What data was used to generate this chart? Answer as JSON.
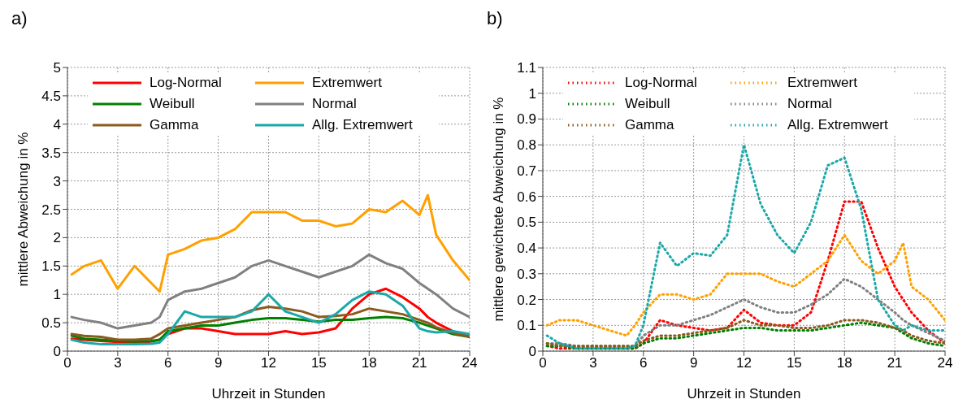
{
  "chart_data": [
    {
      "type": "line",
      "title": "a)",
      "xlabel": "Uhrzeit in Stunden",
      "ylabel": "mittlere Abweichung in %",
      "x": [
        0.25,
        1,
        2,
        3,
        4,
        5,
        5.5,
        6,
        7,
        8,
        9,
        10,
        11,
        12,
        13,
        14,
        15,
        16,
        17,
        18,
        19,
        20,
        21,
        21.5,
        22,
        23,
        24
      ],
      "xlim": [
        0,
        24
      ],
      "xticks": [
        0,
        3,
        6,
        9,
        12,
        15,
        18,
        21,
        24
      ],
      "ylim": [
        0,
        5
      ],
      "yticks": [
        0,
        0.5,
        1,
        1.5,
        2,
        2.5,
        3,
        3.5,
        4,
        4.5,
        5
      ],
      "grid": true,
      "legend": "top left",
      "line_style": "solid",
      "series": [
        {
          "name": "Log-Normal",
          "color": "#ff0000",
          "values": [
            0.22,
            0.2,
            0.18,
            0.16,
            0.15,
            0.17,
            0.2,
            0.3,
            0.4,
            0.4,
            0.35,
            0.3,
            0.3,
            0.3,
            0.35,
            0.3,
            0.33,
            0.4,
            0.75,
            1.0,
            1.1,
            0.95,
            0.75,
            0.6,
            0.5,
            0.35,
            0.25
          ]
        },
        {
          "name": "Extremwert",
          "color": "#ffa000",
          "values": [
            1.35,
            1.5,
            1.6,
            1.1,
            1.5,
            1.2,
            1.05,
            1.7,
            1.8,
            1.95,
            2.0,
            2.15,
            2.45,
            2.45,
            2.45,
            2.3,
            2.3,
            2.2,
            2.25,
            2.5,
            2.45,
            2.65,
            2.4,
            2.75,
            2.05,
            1.6,
            1.25
          ]
        },
        {
          "name": "Weibull",
          "color": "#008000",
          "values": [
            0.27,
            0.22,
            0.2,
            0.18,
            0.17,
            0.18,
            0.2,
            0.35,
            0.4,
            0.45,
            0.45,
            0.5,
            0.55,
            0.58,
            0.58,
            0.55,
            0.52,
            0.55,
            0.55,
            0.58,
            0.6,
            0.58,
            0.5,
            0.45,
            0.4,
            0.3,
            0.25
          ]
        },
        {
          "name": "Normal",
          "color": "#808080",
          "values": [
            0.6,
            0.55,
            0.5,
            0.4,
            0.45,
            0.5,
            0.6,
            0.9,
            1.05,
            1.1,
            1.2,
            1.3,
            1.5,
            1.6,
            1.5,
            1.4,
            1.3,
            1.4,
            1.5,
            1.7,
            1.55,
            1.45,
            1.2,
            1.1,
            1.0,
            0.75,
            0.6
          ]
        },
        {
          "name": "Gamma",
          "color": "#8c5a1e",
          "values": [
            0.3,
            0.27,
            0.25,
            0.2,
            0.2,
            0.22,
            0.3,
            0.4,
            0.45,
            0.5,
            0.55,
            0.6,
            0.72,
            0.78,
            0.75,
            0.7,
            0.6,
            0.62,
            0.65,
            0.75,
            0.7,
            0.65,
            0.55,
            0.5,
            0.42,
            0.32,
            0.25
          ]
        },
        {
          "name": "Allg. Extremwert",
          "color": "#1aa8a8",
          "values": [
            0.2,
            0.15,
            0.12,
            0.12,
            0.12,
            0.13,
            0.15,
            0.3,
            0.7,
            0.6,
            0.6,
            0.6,
            0.7,
            1.0,
            0.7,
            0.6,
            0.5,
            0.65,
            0.9,
            1.05,
            1.0,
            0.8,
            0.4,
            0.35,
            0.33,
            0.35,
            0.3
          ]
        }
      ]
    },
    {
      "type": "line",
      "title": "b)",
      "xlabel": "Uhrzeit in Stunden",
      "ylabel": "mittlere gewichtete Abweichung in %",
      "x": [
        0.25,
        1,
        2,
        3,
        4,
        5,
        5.5,
        6,
        7,
        8,
        9,
        10,
        11,
        12,
        13,
        14,
        15,
        16,
        17,
        18,
        19,
        20,
        21,
        21.5,
        22,
        23,
        24
      ],
      "xlim": [
        0,
        24
      ],
      "xticks": [
        0,
        3,
        6,
        9,
        12,
        15,
        18,
        21,
        24
      ],
      "ylim": [
        0,
        1.1
      ],
      "yticks": [
        0,
        0.1,
        0.2,
        0.3,
        0.4,
        0.5,
        0.6,
        0.7,
        0.8,
        0.9,
        1,
        1.1
      ],
      "grid": true,
      "legend": "top left",
      "line_style": "dotted",
      "series": [
        {
          "name": "Log-Normal",
          "color": "#ff0000",
          "values": [
            0.02,
            0.01,
            0.01,
            0.01,
            0.01,
            0.01,
            0.01,
            0.03,
            0.12,
            0.1,
            0.09,
            0.08,
            0.09,
            0.16,
            0.11,
            0.1,
            0.1,
            0.15,
            0.35,
            0.58,
            0.58,
            0.4,
            0.25,
            0.2,
            0.15,
            0.08,
            0.03
          ]
        },
        {
          "name": "Extremwert",
          "color": "#ffa000",
          "values": [
            0.1,
            0.12,
            0.12,
            0.1,
            0.08,
            0.06,
            0.1,
            0.15,
            0.22,
            0.22,
            0.2,
            0.22,
            0.3,
            0.3,
            0.3,
            0.27,
            0.25,
            0.3,
            0.35,
            0.45,
            0.35,
            0.3,
            0.35,
            0.42,
            0.25,
            0.2,
            0.12
          ]
        },
        {
          "name": "Weibull",
          "color": "#008000",
          "values": [
            0.02,
            0.02,
            0.01,
            0.01,
            0.01,
            0.01,
            0.01,
            0.03,
            0.05,
            0.05,
            0.06,
            0.07,
            0.08,
            0.09,
            0.09,
            0.08,
            0.08,
            0.08,
            0.09,
            0.1,
            0.11,
            0.1,
            0.09,
            0.07,
            0.05,
            0.03,
            0.02
          ]
        },
        {
          "name": "Normal",
          "color": "#808080",
          "values": [
            0.03,
            0.03,
            0.02,
            0.02,
            0.02,
            0.02,
            0.02,
            0.06,
            0.1,
            0.1,
            0.12,
            0.14,
            0.17,
            0.2,
            0.17,
            0.15,
            0.15,
            0.18,
            0.22,
            0.28,
            0.25,
            0.2,
            0.15,
            0.12,
            0.1,
            0.07,
            0.04
          ]
        },
        {
          "name": "Gamma",
          "color": "#8c5a1e",
          "values": [
            0.03,
            0.02,
            0.02,
            0.02,
            0.02,
            0.02,
            0.02,
            0.04,
            0.06,
            0.06,
            0.07,
            0.08,
            0.09,
            0.12,
            0.1,
            0.1,
            0.09,
            0.09,
            0.1,
            0.12,
            0.12,
            0.11,
            0.09,
            0.08,
            0.06,
            0.04,
            0.03
          ]
        },
        {
          "name": "Allg. Extremwert",
          "color": "#1aa8a8",
          "values": [
            0.06,
            0.03,
            0.01,
            0.01,
            0.01,
            0.01,
            0.02,
            0.1,
            0.42,
            0.33,
            0.38,
            0.37,
            0.45,
            0.8,
            0.57,
            0.45,
            0.38,
            0.5,
            0.72,
            0.75,
            0.55,
            0.2,
            0.1,
            0.08,
            0.1,
            0.08,
            0.08
          ]
        }
      ]
    }
  ]
}
